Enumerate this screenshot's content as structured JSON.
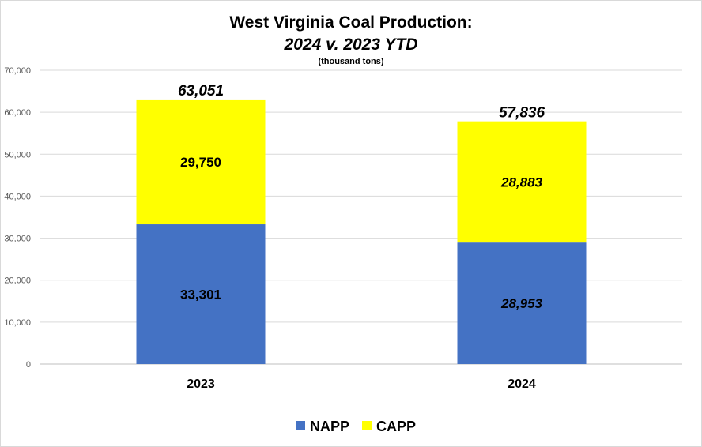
{
  "chart_data": {
    "type": "bar",
    "stacked": true,
    "title": "West Virginia Coal Production:",
    "subtitle": "2024 v. 2023 YTD",
    "unit_note": "(thousand tons)",
    "categories": [
      "2023",
      "2024"
    ],
    "series": [
      {
        "name": "NAPP",
        "color": "#4472c4",
        "values": [
          33301,
          28953
        ],
        "labels": [
          "33,301",
          "28,953"
        ]
      },
      {
        "name": "CAPP",
        "color": "#ffff00",
        "values": [
          29750,
          28883
        ],
        "labels": [
          "29,750",
          "28,883"
        ]
      }
    ],
    "totals": [
      "63,051",
      "57,836"
    ],
    "italic_labels": [
      false,
      true
    ],
    "ylim": [
      0,
      70000
    ],
    "yticks": [
      0,
      10000,
      20000,
      30000,
      40000,
      50000,
      60000,
      70000
    ],
    "ytick_labels": [
      "0",
      "10,000",
      "20,000",
      "30,000",
      "40,000",
      "50,000",
      "60,000",
      "70,000"
    ],
    "grid": true,
    "legend_position": "bottom"
  }
}
